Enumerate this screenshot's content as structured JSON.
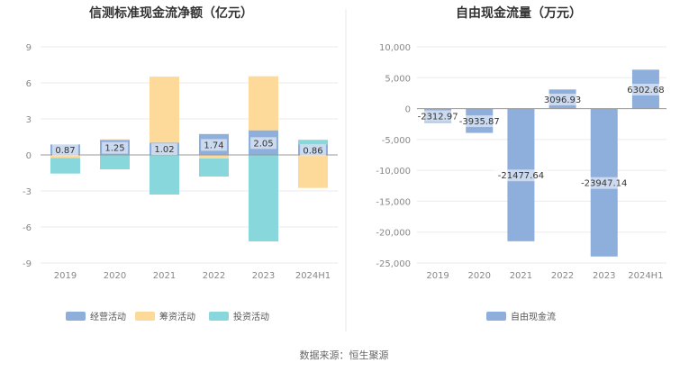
{
  "source": "数据来源：恒生聚源",
  "chart_data": [
    {
      "type": "bar",
      "stacked": true,
      "title": "信测标准现金流净额（亿元）",
      "categories": [
        "2019",
        "2020",
        "2021",
        "2022",
        "2023",
        "2024H1"
      ],
      "y_ticks": [
        "9",
        "6",
        "3",
        "0",
        "-3",
        "-6",
        "-9"
      ],
      "ylim": [
        -9,
        9
      ],
      "grid": true,
      "legend_position": "bottom",
      "series": [
        {
          "name": "经营活动",
          "color": "#8eaedb",
          "values": [
            0.87,
            1.25,
            1.02,
            1.74,
            2.05,
            0.86
          ]
        },
        {
          "name": "筹资活动",
          "color": "#fdd99a",
          "values": [
            -0.25,
            0.05,
            5.5,
            -0.3,
            4.5,
            -2.75
          ]
        },
        {
          "name": "投资活动",
          "color": "#87d7dc",
          "values": [
            -1.3,
            -1.2,
            -3.3,
            -1.5,
            -7.2,
            0.4
          ]
        }
      ],
      "data_labels": [
        "0.87",
        "1.25",
        "1.02",
        "1.74",
        "2.05",
        "0.86"
      ]
    },
    {
      "type": "bar",
      "title": "自由现金流量（万元）",
      "categories": [
        "2019",
        "2020",
        "2021",
        "2022",
        "2023",
        "2024H1"
      ],
      "y_ticks": [
        "10,000",
        "5,000",
        "0",
        "-5,000",
        "-10,000",
        "-15,000",
        "-20,000",
        "-25,000"
      ],
      "ylim": [
        -25000,
        10000
      ],
      "grid": true,
      "legend_position": "bottom",
      "series": [
        {
          "name": "自由现金流",
          "color": "#8eaedb",
          "values": [
            -2312.97,
            -3935.87,
            -21477.64,
            3096.93,
            -23947.14,
            6302.68
          ]
        }
      ],
      "data_labels": [
        "-2312.97",
        "-3935.87",
        "-21477.64",
        "3096.93",
        "-23947.14",
        "6302.68"
      ]
    }
  ]
}
